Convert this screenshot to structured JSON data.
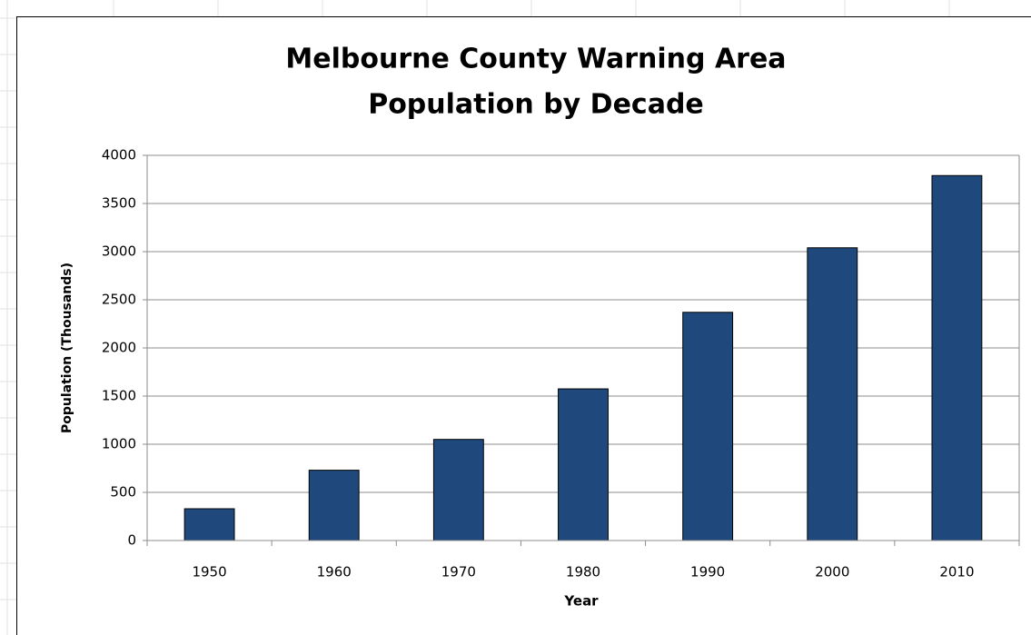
{
  "chart_data": {
    "type": "bar",
    "title": [
      "Melbourne County Warning Area",
      "Population by Decade"
    ],
    "x_label": "Year",
    "y_label": "Population  (Thousands)",
    "categories": [
      "1950",
      "1960",
      "1970",
      "1980",
      "1990",
      "2000",
      "2010"
    ],
    "values": [
      330,
      730,
      1050,
      1575,
      2370,
      3040,
      3790
    ],
    "color": "#1f497d",
    "ylim": [
      0,
      4000
    ],
    "yticks": [
      0,
      500,
      1000,
      1500,
      2000,
      2500,
      3000,
      3500,
      4000
    ],
    "grid": true
  }
}
